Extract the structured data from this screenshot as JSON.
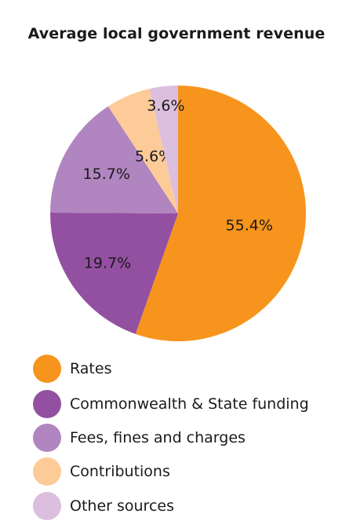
{
  "chart_data": {
    "type": "pie",
    "title": "Average local government revenue",
    "slices": [
      {
        "name": "Rates",
        "value": 55.4,
        "label": "55.4%",
        "color": "#f7941d"
      },
      {
        "name": "Commonwealth & State funding",
        "value": 19.7,
        "label": "19.7%",
        "color": "#9350a1"
      },
      {
        "name": "Fees, fines and charges",
        "value": 15.7,
        "label": "15.7%",
        "color": "#b185bf"
      },
      {
        "name": "Contributions",
        "value": 5.6,
        "label": "5.6%",
        "color": "#fdcb98"
      },
      {
        "name": "Other sources",
        "value": 3.6,
        "label": "3.6%",
        "color": "#dcbfde"
      }
    ],
    "start_angle": "12 o'clock",
    "direction": "clockwise",
    "legend_position": "bottom"
  }
}
